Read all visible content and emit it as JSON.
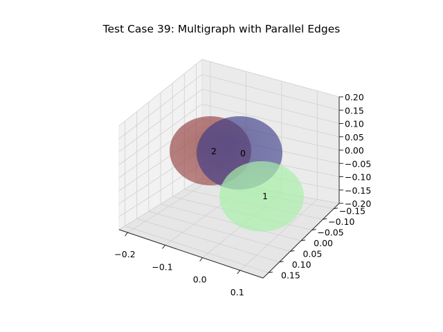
{
  "chart_data": {
    "type": "scatter",
    "projection": "3d",
    "title": "Test Case 39: Multigraph with Parallel Edges",
    "xlabel": "",
    "ylabel": "",
    "zlabel": "",
    "grid": true,
    "legend": "none",
    "xlim": [
      -0.22,
      0.16
    ],
    "ylim": [
      -0.16,
      0.16
    ],
    "zlim": [
      -0.2,
      0.2
    ],
    "x_ticks": [
      "−0.2",
      "−0.1",
      "0.0",
      "0.1"
    ],
    "y_ticks": [
      "−0.15",
      "−0.10",
      "−0.05",
      "0.00",
      "0.05",
      "0.10",
      "0.15"
    ],
    "z_ticks": [
      "−0.20",
      "−0.15",
      "−0.10",
      "−0.05",
      "0.00",
      "0.05",
      "0.10",
      "0.15",
      "0.20"
    ],
    "nodes": [
      {
        "label": "0",
        "color": "#3a3a86",
        "opacity": 0.7
      },
      {
        "label": "1",
        "color": "#a8f0a8",
        "opacity": 0.75
      },
      {
        "label": "2",
        "color": "#9a4a4a",
        "opacity": 0.75
      }
    ]
  }
}
